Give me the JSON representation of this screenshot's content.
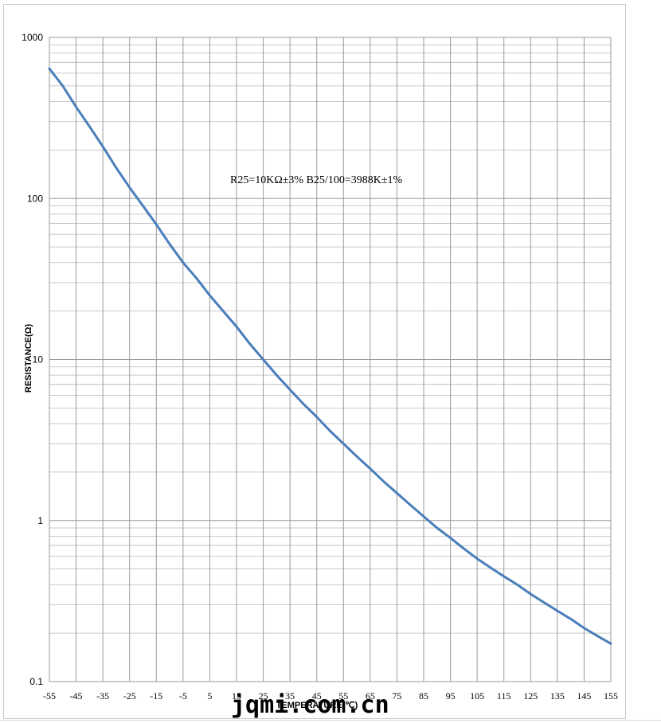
{
  "chart_data": {
    "type": "line",
    "title": "",
    "annotation": "R25=10KΩ±3%   B25/100=3988K±1%",
    "xlabel": "TEMPERATURE(℃)",
    "ylabel": "RESISTANCE(Ω)",
    "xlim": [
      -55,
      155
    ],
    "ylim": [
      0.1,
      1000
    ],
    "yscale": "log",
    "grid": true,
    "legend": "none",
    "x_ticks": [
      "-55",
      "-45",
      "-35",
      "-25",
      "-15",
      "-5",
      "5",
      "15",
      "25",
      "35",
      "45",
      "55",
      "65",
      "75",
      "85",
      "95",
      "105",
      "115",
      "125",
      "135",
      "145",
      "155"
    ],
    "y_ticks": [
      "0.1",
      "1",
      "10",
      "100",
      "1000"
    ],
    "line_color": "#4a7ebb",
    "series": [
      {
        "x": [
          -55,
          -50,
          -45,
          -40,
          -35,
          -30,
          -25,
          -20,
          -15,
          -10,
          -5,
          0,
          5,
          10,
          15,
          20,
          25,
          30,
          35,
          40,
          45,
          50,
          55,
          60,
          65,
          70,
          75,
          80,
          85,
          90,
          95,
          100,
          105,
          110,
          115,
          120,
          125,
          130,
          135,
          140,
          145,
          150,
          155
        ],
        "values": [
          640,
          500,
          370,
          280,
          210,
          155,
          117,
          90,
          69,
          52,
          40,
          32,
          25,
          20,
          16,
          12.5,
          10,
          8,
          6.5,
          5.3,
          4.4,
          3.6,
          3.0,
          2.5,
          2.1,
          1.75,
          1.48,
          1.25,
          1.06,
          0.9,
          0.78,
          0.67,
          0.58,
          0.51,
          0.45,
          0.4,
          0.35,
          0.31,
          0.275,
          0.245,
          0.215,
          0.192,
          0.172
        ]
      }
    ]
  },
  "watermark": "jqmi.com.cn"
}
